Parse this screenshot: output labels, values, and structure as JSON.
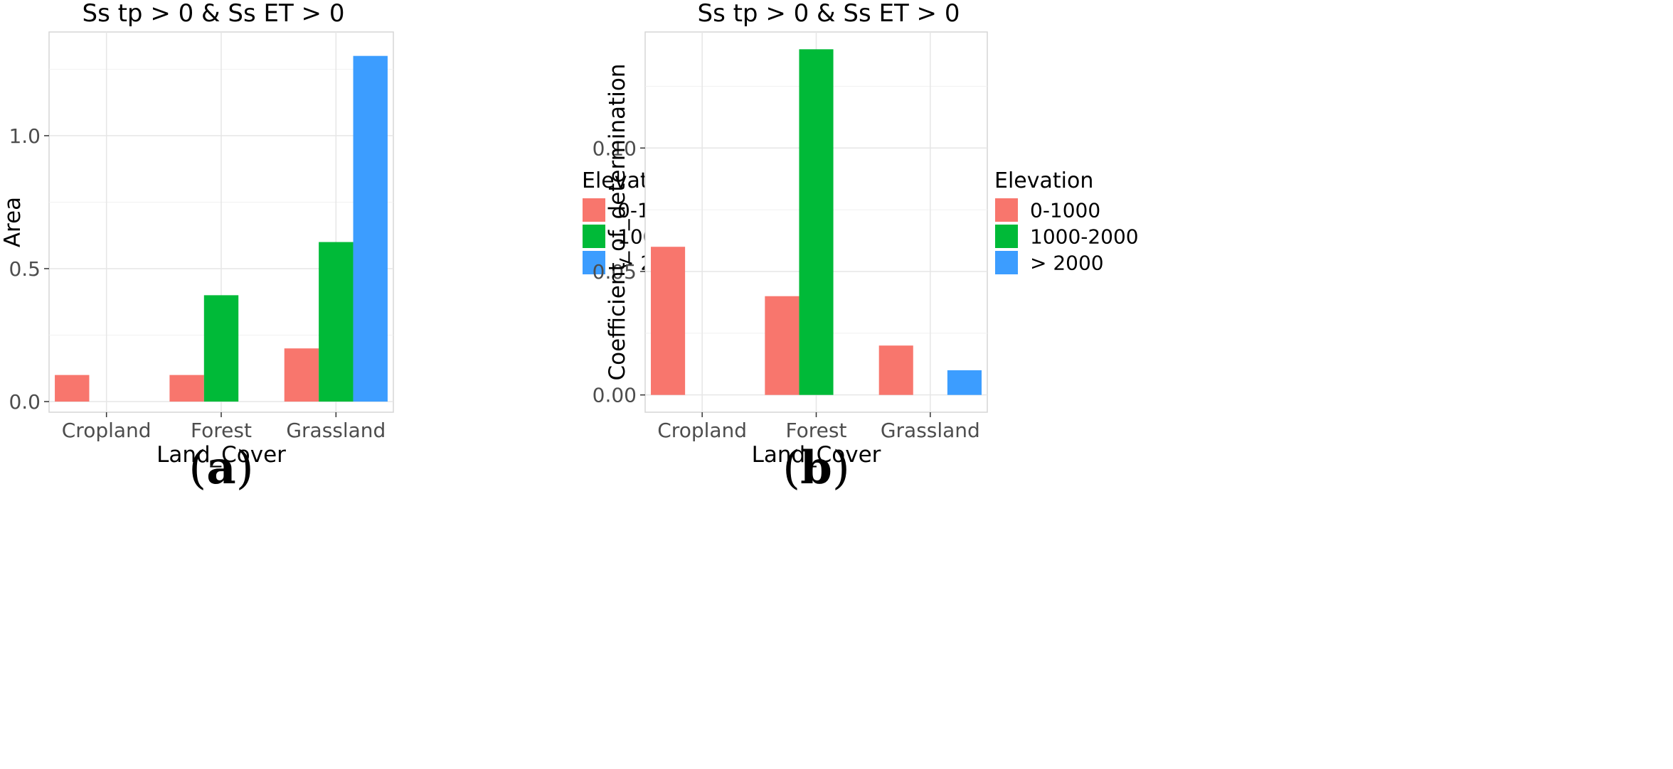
{
  "chart_data": [
    {
      "type": "bar",
      "panel_label": "a",
      "title": "Ss tp > 0 & Ss ET > 0",
      "xlabel": "Land_Cover",
      "ylabel": "Area",
      "categories": [
        "Cropland",
        "Forest",
        "Grassland"
      ],
      "ylim": [
        -0.04,
        1.39
      ],
      "yticks": [
        0.0,
        0.5,
        1.0
      ],
      "ytick_labels": [
        "0.0",
        "0.5",
        "1.0"
      ],
      "grid": true,
      "legend": {
        "title": "Elevation",
        "position": "right"
      },
      "series": [
        {
          "name": "0-1000",
          "color": "#F8766D",
          "values": [
            0.1,
            0.1,
            0.2
          ]
        },
        {
          "name": "1000-2000",
          "color": "#00BA38",
          "values": [
            null,
            0.4,
            0.6
          ]
        },
        {
          "name": "> 2000",
          "color": "#3C9DFF",
          "values": [
            null,
            null,
            1.3
          ]
        }
      ]
    },
    {
      "type": "bar",
      "panel_label": "b",
      "title": "Ss tp > 0 & Ss ET > 0",
      "xlabel": "Land_Cover",
      "ylabel": "Coefficient_of_determination",
      "categories": [
        "Cropland",
        "Forest",
        "Grassland"
      ],
      "ylim": [
        -0.007,
        0.147
      ],
      "yticks": [
        0.0,
        0.05,
        0.1
      ],
      "ytick_labels": [
        "0.00",
        "0.05",
        "0.10"
      ],
      "grid": true,
      "legend": {
        "title": "Elevation",
        "position": "right"
      },
      "series": [
        {
          "name": "0-1000",
          "color": "#F8766D",
          "values": [
            0.06,
            0.04,
            0.02
          ]
        },
        {
          "name": "1000-2000",
          "color": "#00BA38",
          "values": [
            null,
            0.14,
            null
          ]
        },
        {
          "name": "> 2000",
          "color": "#3C9DFF",
          "values": [
            null,
            null,
            0.01
          ]
        }
      ]
    }
  ]
}
